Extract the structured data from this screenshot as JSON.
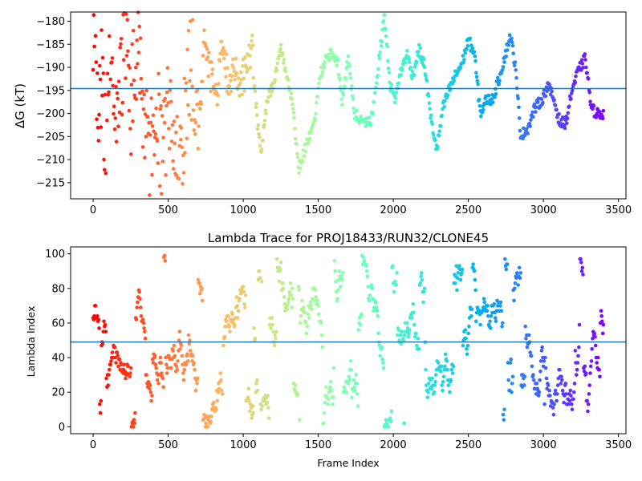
{
  "chart_data": [
    {
      "type": "scatter",
      "title": "",
      "xlabel": "",
      "ylabel": "ΔG (kT)",
      "xlim": [
        -150,
        3550
      ],
      "ylim": [
        -218.5,
        -178
      ],
      "xticks": [
        0,
        500,
        1000,
        1500,
        2000,
        2500,
        3000,
        3500
      ],
      "yticks": [
        -215,
        -210,
        -205,
        -200,
        -195,
        -190,
        -185,
        -180
      ],
      "hline": -194.6,
      "hline_color": "#1f77b4",
      "colormap": "rainbow",
      "grid": false,
      "legend": "none",
      "x_start": 0,
      "x_step": 4,
      "keypoints": [
        [
          0,
          -180
        ],
        [
          40,
          -200
        ],
        [
          60,
          -190
        ],
        [
          90,
          -212
        ],
        [
          110,
          -182
        ],
        [
          130,
          -195
        ],
        [
          150,
          -202
        ],
        [
          180,
          -196
        ],
        [
          210,
          -183
        ],
        [
          250,
          -198
        ],
        [
          300,
          -186
        ],
        [
          340,
          -200
        ],
        [
          380,
          -208
        ],
        [
          420,
          -194
        ],
        [
          460,
          -212
        ],
        [
          500,
          -199
        ],
        [
          540,
          -202
        ],
        [
          580,
          -213
        ],
        [
          620,
          -197
        ],
        [
          660,
          -189
        ],
        [
          700,
          -204
        ],
        [
          740,
          -184
        ],
        [
          780,
          -191
        ],
        [
          820,
          -197
        ],
        [
          860,
          -186
        ],
        [
          900,
          -193
        ],
        [
          940,
          -190
        ],
        [
          980,
          -194
        ],
        [
          1020,
          -190
        ],
        [
          1060,
          -186
        ],
        [
          1090,
          -201
        ],
        [
          1120,
          -208
        ],
        [
          1160,
          -197
        ],
        [
          1200,
          -194
        ],
        [
          1250,
          -185
        ],
        [
          1290,
          -192
        ],
        [
          1330,
          -198
        ],
        [
          1370,
          -212
        ],
        [
          1420,
          -207
        ],
        [
          1470,
          -203
        ],
        [
          1510,
          -192
        ],
        [
          1550,
          -188
        ],
        [
          1590,
          -187
        ],
        [
          1630,
          -189
        ],
        [
          1660,
          -197
        ],
        [
          1700,
          -188
        ],
        [
          1740,
          -200
        ],
        [
          1800,
          -202
        ],
        [
          1850,
          -202
        ],
        [
          1880,
          -195
        ],
        [
          1910,
          -187
        ],
        [
          1940,
          -179
        ],
        [
          1980,
          -194
        ],
        [
          2010,
          -197
        ],
        [
          2050,
          -191
        ],
        [
          2090,
          -187
        ],
        [
          2130,
          -192
        ],
        [
          2170,
          -186
        ],
        [
          2210,
          -190
        ],
        [
          2250,
          -201
        ],
        [
          2290,
          -208
        ],
        [
          2330,
          -199
        ],
        [
          2370,
          -195
        ],
        [
          2410,
          -192
        ],
        [
          2460,
          -189
        ],
        [
          2500,
          -184
        ],
        [
          2540,
          -187
        ],
        [
          2580,
          -200
        ],
        [
          2620,
          -197
        ],
        [
          2660,
          -197
        ],
        [
          2700,
          -193
        ],
        [
          2740,
          -188
        ],
        [
          2780,
          -183
        ],
        [
          2810,
          -189
        ],
        [
          2850,
          -205
        ],
        [
          2900,
          -203
        ],
        [
          2940,
          -199
        ],
        [
          2990,
          -197
        ],
        [
          3030,
          -194
        ],
        [
          3070,
          -197
        ],
        [
          3110,
          -202
        ],
        [
          3150,
          -202
        ],
        [
          3190,
          -195
        ],
        [
          3230,
          -191
        ],
        [
          3280,
          -188
        ],
        [
          3320,
          -199
        ],
        [
          3360,
          -200
        ],
        [
          3400,
          -200
        ]
      ],
      "spread": 1.2
    },
    {
      "type": "scatter",
      "title": "Lambda Trace for PROJ18433/RUN32/CLONE45",
      "xlabel": "Frame Index",
      "ylabel": "Lambda Index",
      "xlim": [
        -150,
        3550
      ],
      "ylim": [
        -4,
        104
      ],
      "xticks": [
        0,
        500,
        1000,
        1500,
        2000,
        2500,
        3000,
        3500
      ],
      "yticks": [
        0,
        20,
        40,
        60,
        80,
        100
      ],
      "hline": 49,
      "hline_color": "#1f77b4",
      "colormap": "rainbow",
      "grid": false,
      "legend": "none",
      "x_start": 0,
      "x_step": 4,
      "range": [
        0,
        99
      ]
    }
  ]
}
